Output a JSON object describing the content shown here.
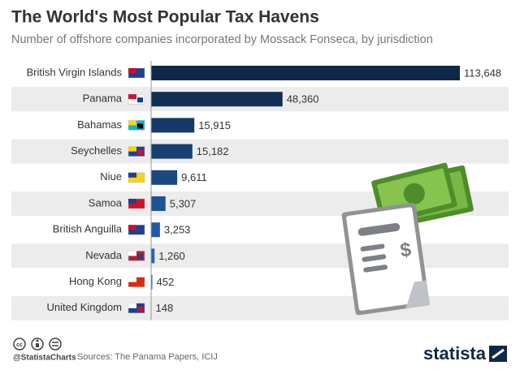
{
  "chart_data": {
    "type": "bar",
    "orientation": "horizontal",
    "title": "The World's Most Popular Tax Havens",
    "subtitle": "Number of offshore companies incorporated by Mossack Fonseca, by jurisdiction",
    "categories": [
      "British Virgin Islands",
      "Panama",
      "Bahamas",
      "Seychelles",
      "Niue",
      "Samoa",
      "British Anguilla",
      "Nevada",
      "Hong Kong",
      "United Kingdom"
    ],
    "values": [
      113648,
      48360,
      15915,
      15182,
      9611,
      5307,
      3253,
      1260,
      452,
      148
    ],
    "value_labels": [
      "113,648",
      "48,360",
      "15,915",
      "15,182",
      "9,611",
      "5,307",
      "3,253",
      "1,260",
      "452",
      "148"
    ],
    "colors": [
      "#0f2848",
      "#112e54",
      "#153a69",
      "#173f72",
      "#1a4883",
      "#1d5293",
      "#1f5ba3",
      "#2364b0",
      "#276dbc",
      "#2b75c6"
    ],
    "credit": "@StatistaCharts",
    "source": "Sources: The Panama Papers, ICIJ",
    "brand": "statista"
  }
}
